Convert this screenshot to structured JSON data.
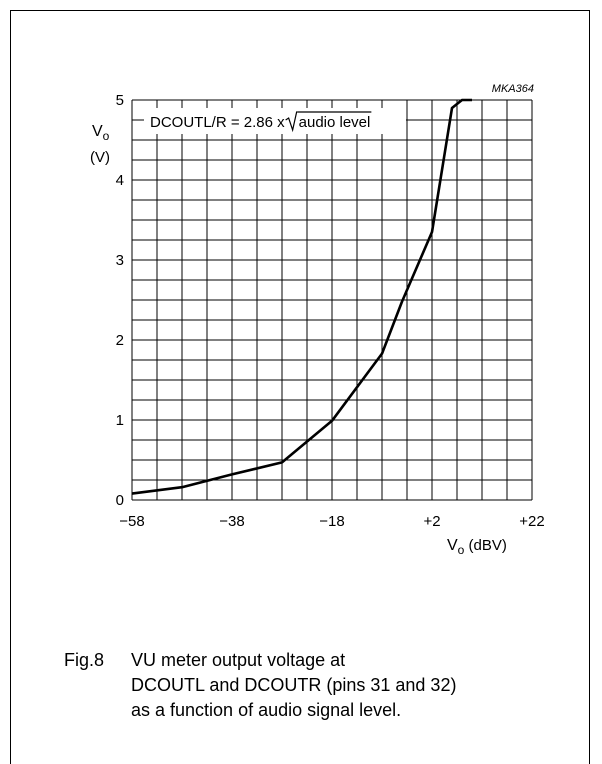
{
  "chart_data": {
    "type": "line",
    "code_label": "MKA364",
    "formula": {
      "text": "DCOUTL/R = 2.86 x ",
      "sqrt_arg": "audio level"
    },
    "ylabel": {
      "main": "V",
      "sub": "o",
      "unit": "(V)"
    },
    "xlabel": {
      "main": "V",
      "sub": "o",
      "unit": " (dBV)"
    },
    "xlim": [
      -58,
      22
    ],
    "ylim": [
      0,
      5
    ],
    "x_ticks": [
      "−58",
      "−38",
      "−18",
      "+2",
      "+22"
    ],
    "x_tick_values": [
      -58,
      -38,
      -18,
      2,
      22
    ],
    "y_ticks": [
      "0",
      "1",
      "2",
      "3",
      "4",
      "5"
    ],
    "y_tick_values": [
      0,
      1,
      2,
      3,
      4,
      5
    ],
    "grid": true,
    "series": [
      {
        "x": [
          -58,
          -48,
          -38,
          -28,
          -18,
          -8,
          -4,
          2,
          6,
          8,
          10
        ],
        "y": [
          0.08,
          0.16,
          0.32,
          0.47,
          0.99,
          1.83,
          2.48,
          3.35,
          4.9,
          5.0,
          5.0
        ]
      }
    ]
  },
  "caption": {
    "figure": "Fig.8",
    "lines": [
      "VU meter output voltage at",
      "DCOUTL and DCOUTR (pins 31 and 32)",
      "as a function of audio signal level."
    ]
  }
}
